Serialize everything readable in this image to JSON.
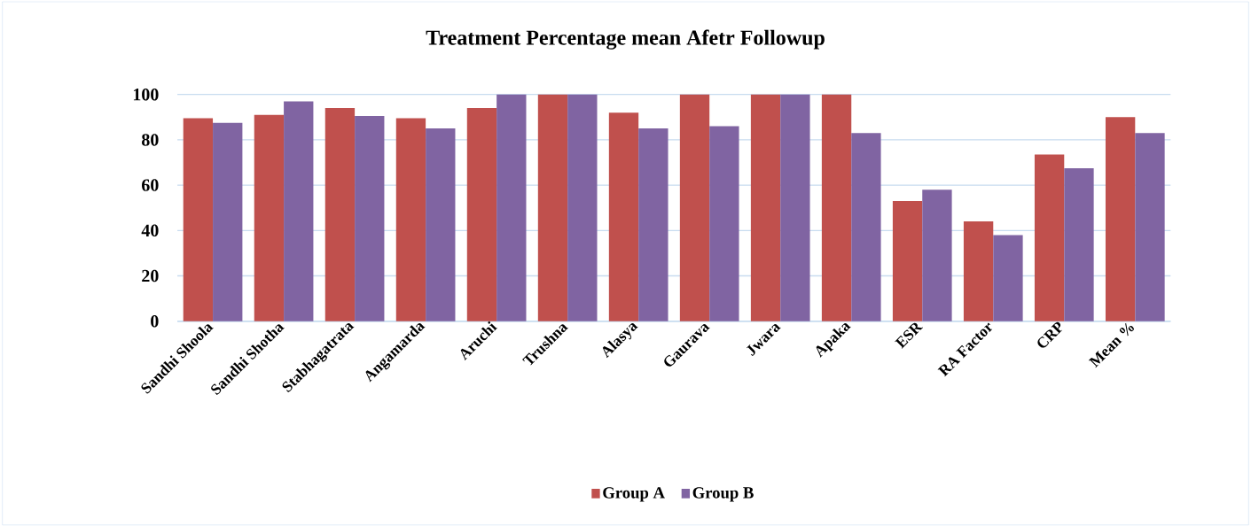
{
  "chart_data": {
    "type": "bar",
    "title": "Treatment Percentage mean Afetr Followup",
    "categories": [
      "Sandhi Shoola",
      "Sandhi Shotha",
      "Stabhagatrata",
      "Angamarda",
      "Aruchi",
      "Trushna",
      "Alasya",
      "Gaurava",
      "Jwara",
      "Apaka",
      "ESR",
      "RA Factor",
      "CRP",
      "Mean %"
    ],
    "series": [
      {
        "name": "Group A",
        "color": "#c0504d",
        "values": [
          89.5,
          91,
          94,
          89.5,
          94,
          100,
          92,
          100,
          100,
          100,
          53,
          44,
          73.5,
          90
        ]
      },
      {
        "name": "Group B",
        "color": "#8064a2",
        "values": [
          87.5,
          97,
          90.5,
          85,
          100,
          100,
          85,
          86,
          100,
          83,
          58,
          38,
          67.5,
          83
        ]
      }
    ],
    "ylim": [
      0,
      100
    ],
    "yticks": [
      0,
      20,
      40,
      60,
      80,
      100
    ],
    "grid": "y",
    "legend": "bottom"
  }
}
